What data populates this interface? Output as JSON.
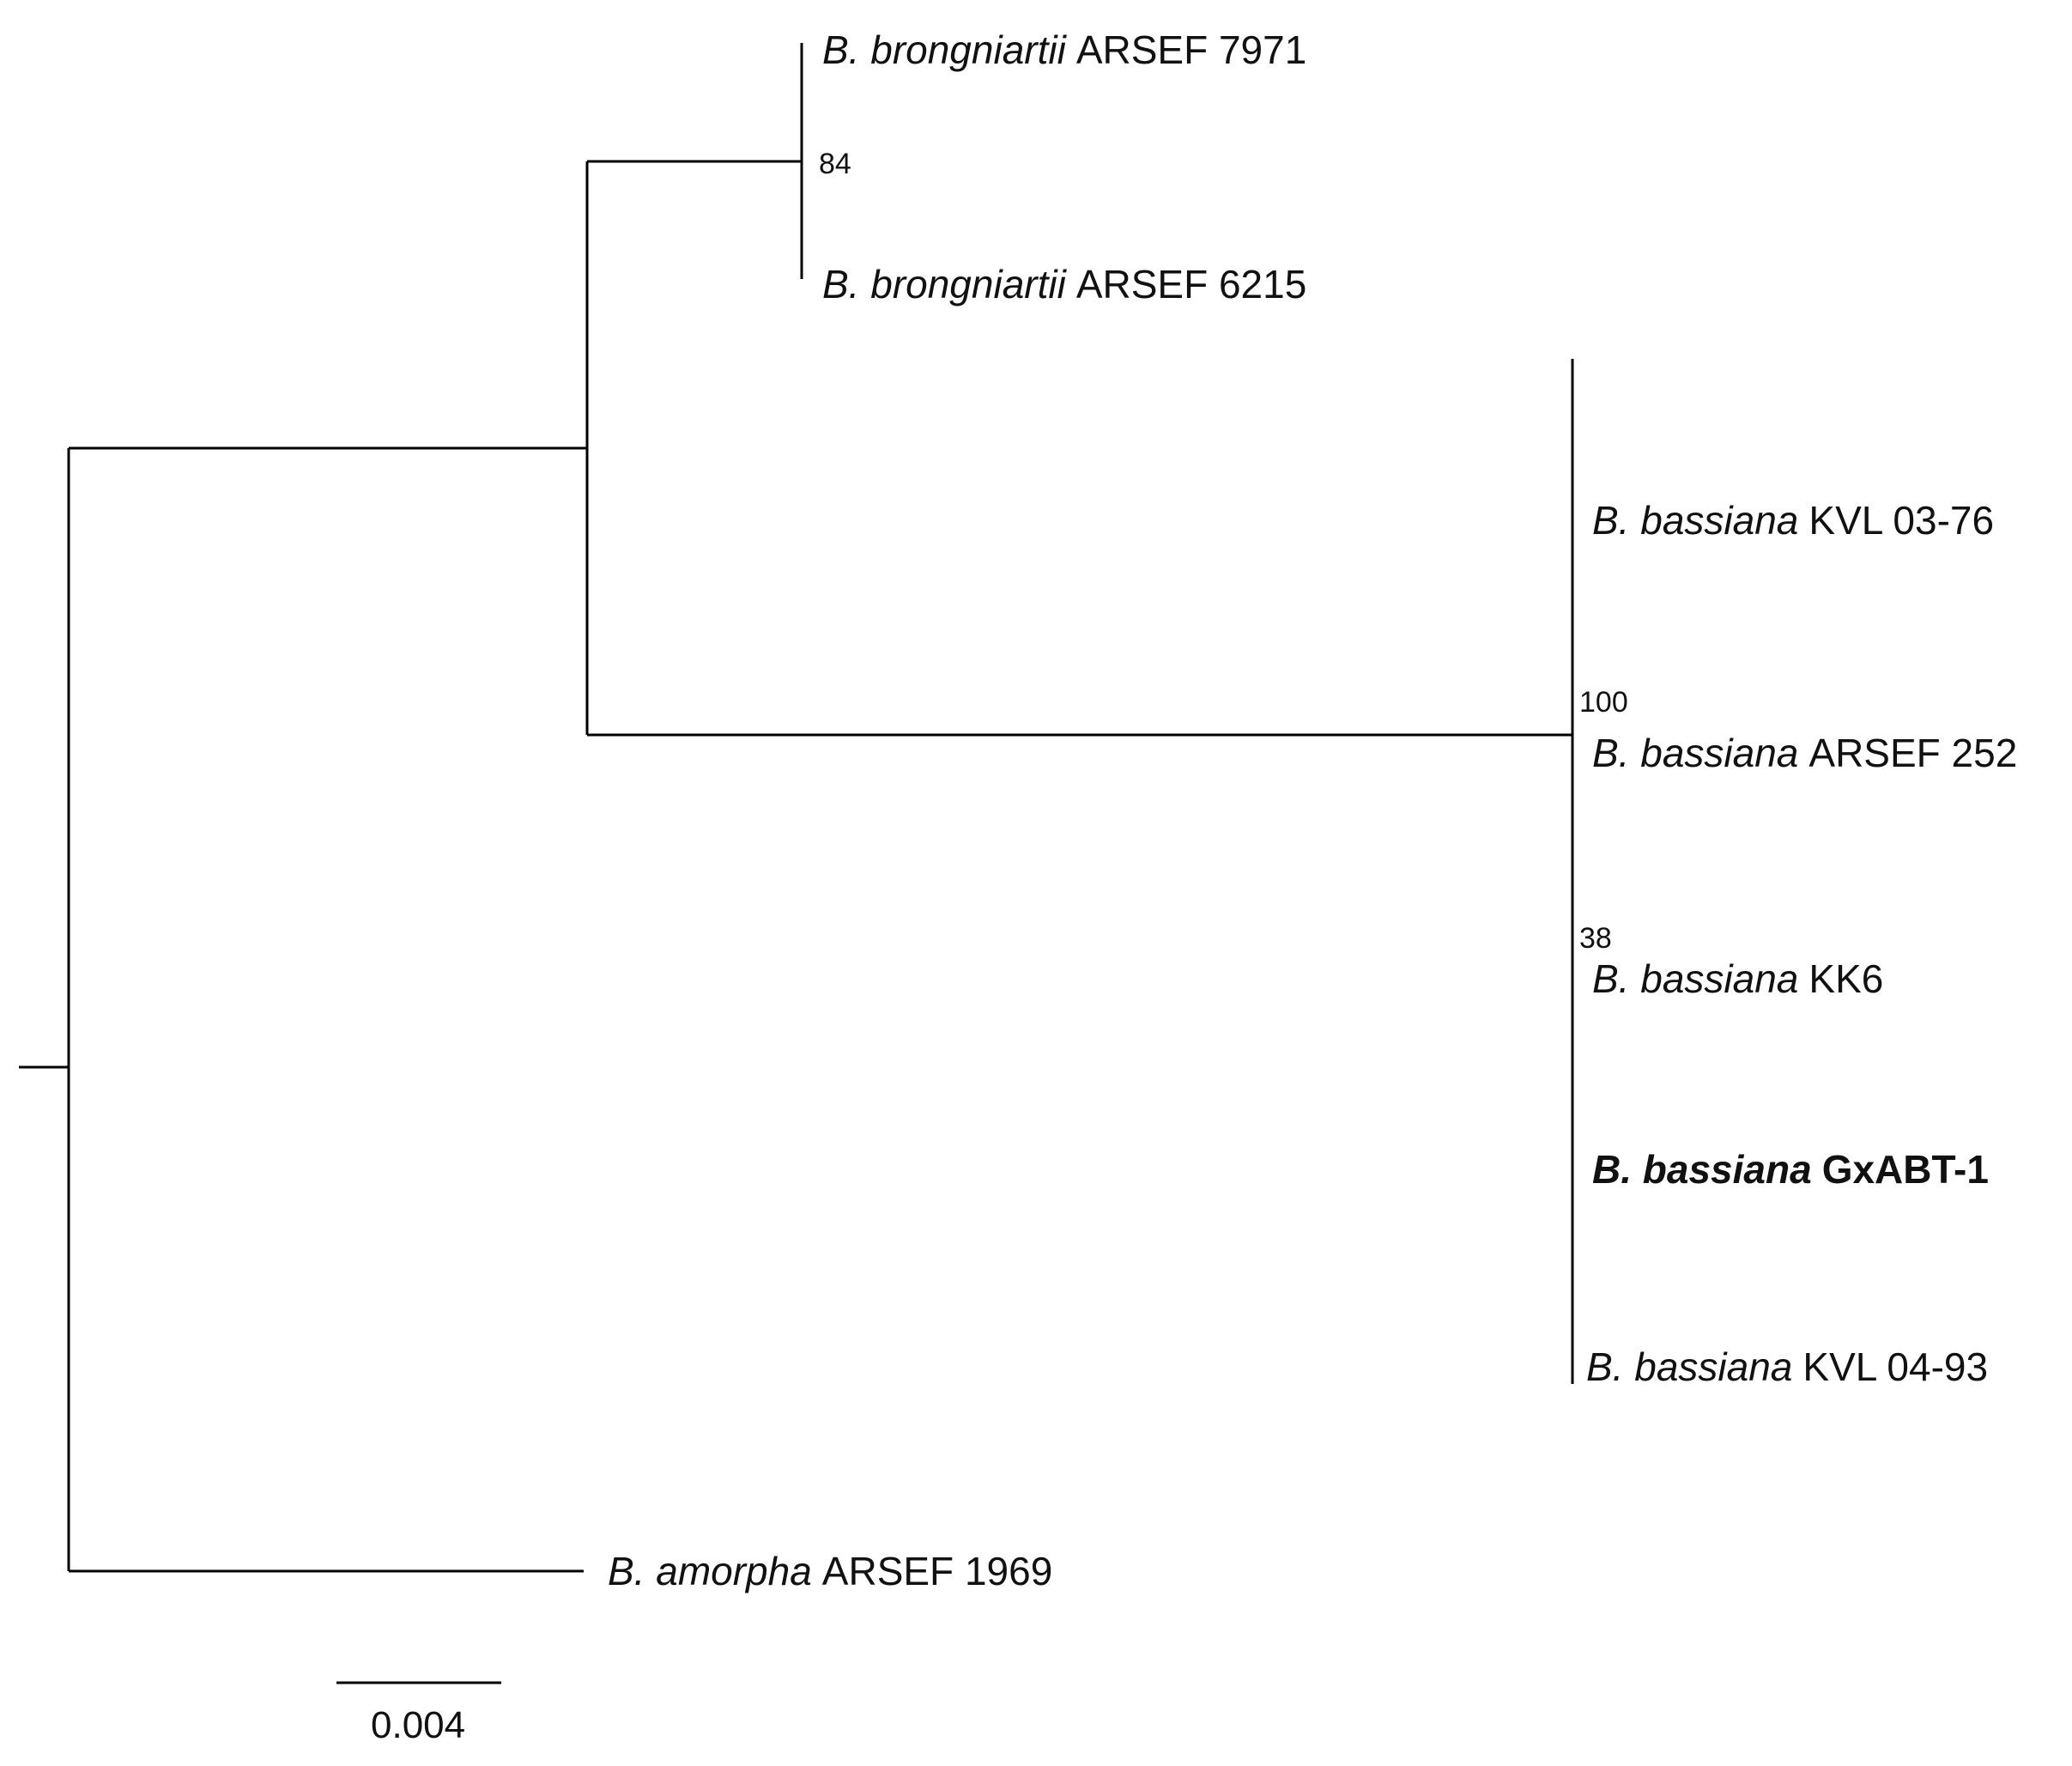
{
  "tree": {
    "taxa": [
      {
        "id": "t1",
        "genus": "B. brongniartii",
        "strain": "ARSEF 7971",
        "highlight": false
      },
      {
        "id": "t2",
        "genus": "B. brongniartii",
        "strain": "ARSEF 6215",
        "highlight": false
      },
      {
        "id": "t3",
        "genus": "B. bassiana",
        "strain": "KVL 03-76",
        "highlight": false
      },
      {
        "id": "t4",
        "genus": "B. bassiana",
        "strain": "ARSEF 252",
        "highlight": false
      },
      {
        "id": "t5",
        "genus": "B. bassiana",
        "strain": "KK6",
        "highlight": false
      },
      {
        "id": "t6",
        "genus": "B. bassiana",
        "strain": "GxABT-1",
        "highlight": true
      },
      {
        "id": "t7",
        "genus": "B. bassiana",
        "strain": "KVL 04-93",
        "highlight": false
      },
      {
        "id": "t8",
        "genus": "B. amorpha",
        "strain": "ARSEF 1969",
        "highlight": false
      }
    ],
    "bootstrap": [
      {
        "clade": "brongniartii",
        "value": "84"
      },
      {
        "clade": "bassiana",
        "value": "100"
      },
      {
        "clade": "bassiana-sub",
        "value": "38"
      }
    ],
    "scale_bar": {
      "label": "0.004",
      "length": 0.004
    },
    "colors": {
      "line": "#000000",
      "text": "#111111"
    }
  }
}
